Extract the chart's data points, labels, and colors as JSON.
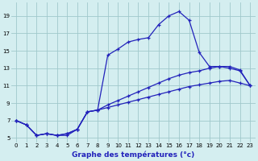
{
  "title": "Graphe des températures (°c)",
  "bg_color": "#d4eef0",
  "grid_color": "#a0c8cc",
  "line_color": "#2222bb",
  "xlim": [
    -0.5,
    23.5
  ],
  "ylim": [
    4.5,
    20.5
  ],
  "xticks": [
    0,
    1,
    2,
    3,
    4,
    5,
    6,
    7,
    8,
    9,
    10,
    11,
    12,
    13,
    14,
    15,
    16,
    17,
    18,
    19,
    20,
    21,
    22,
    23
  ],
  "yticks": [
    5,
    7,
    9,
    11,
    13,
    15,
    17,
    19
  ],
  "series1_x": [
    0,
    1,
    2,
    3,
    4,
    5,
    6,
    7,
    8,
    9,
    10,
    11,
    12,
    13,
    14,
    15,
    16,
    17,
    18,
    19,
    20,
    21,
    22,
    23
  ],
  "series1_y": [
    7.0,
    6.5,
    5.3,
    5.5,
    5.3,
    5.3,
    6.0,
    8.0,
    8.2,
    14.5,
    15.2,
    16.0,
    16.3,
    16.5,
    18.0,
    19.0,
    19.5,
    18.5,
    14.8,
    13.2,
    13.2,
    13.0,
    12.7,
    11.0
  ],
  "series2_x": [
    0,
    1,
    2,
    3,
    4,
    5,
    6,
    7,
    8,
    9,
    10,
    11,
    12,
    13,
    14,
    15,
    16,
    17,
    18,
    19,
    20,
    21,
    22,
    23
  ],
  "series2_y": [
    7.0,
    6.5,
    5.3,
    5.5,
    5.3,
    5.5,
    6.0,
    8.0,
    8.2,
    8.8,
    9.3,
    9.8,
    10.3,
    10.8,
    11.3,
    11.8,
    12.2,
    12.5,
    12.7,
    13.0,
    13.2,
    13.2,
    12.8,
    11.0
  ],
  "series3_x": [
    0,
    1,
    2,
    3,
    4,
    5,
    6,
    7,
    8,
    9,
    10,
    11,
    12,
    13,
    14,
    15,
    16,
    17,
    18,
    19,
    20,
    21,
    22,
    23
  ],
  "series3_y": [
    7.0,
    6.5,
    5.3,
    5.5,
    5.3,
    5.5,
    6.0,
    8.0,
    8.2,
    8.5,
    8.8,
    9.1,
    9.4,
    9.7,
    10.0,
    10.3,
    10.6,
    10.9,
    11.1,
    11.3,
    11.5,
    11.6,
    11.3,
    11.0
  ]
}
